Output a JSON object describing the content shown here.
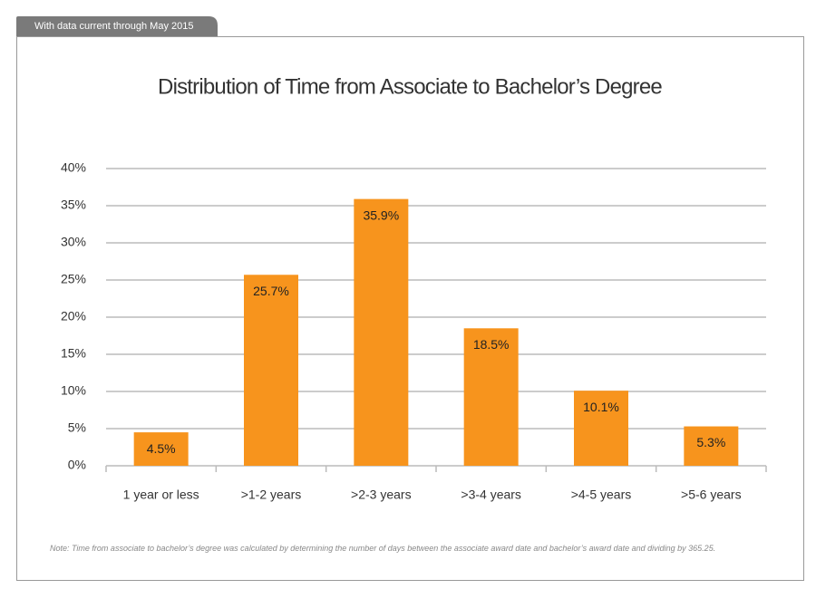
{
  "header": {
    "tab": "With data current through May 2015"
  },
  "chart_data": {
    "type": "bar",
    "title": "Distribution of Time from Associate to Bachelor’s Degree",
    "categories": [
      "1 year or less",
      ">1-2 years",
      ">2-3 years",
      ">3-4 years",
      ">4-5 years",
      ">5-6 years"
    ],
    "values": [
      4.5,
      25.7,
      35.9,
      18.5,
      10.1,
      5.3
    ],
    "value_labels": [
      "4.5%",
      "25.7%",
      "35.9%",
      "18.5%",
      "10.1%",
      "5.3%"
    ],
    "color": "#f7941d",
    "ylim": [
      0,
      40
    ],
    "yticks": [
      {
        "value": 0,
        "label": "0%"
      },
      {
        "value": 5,
        "label": "5%"
      },
      {
        "value": 10,
        "label": "10%"
      },
      {
        "value": 15,
        "label": "15%"
      },
      {
        "value": 20,
        "label": "20%"
      },
      {
        "value": 25,
        "label": "25%"
      },
      {
        "value": 30,
        "label": "30%"
      },
      {
        "value": 35,
        "label": "35%"
      },
      {
        "value": 40,
        "label": "40%"
      }
    ],
    "grid": true,
    "note": "Note: Time from associate to  bachelor’s degree was calculated by determining the number of days between the associate award date and bachelor’s award date and dividing by 365.25."
  }
}
